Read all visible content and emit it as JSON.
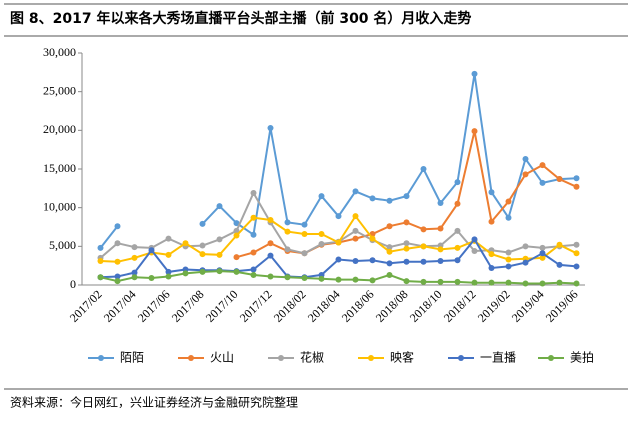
{
  "chart_data": {
    "type": "line",
    "title": "图 8、2017 年以来各大秀场直播平台头部主播（前 300 名）月收入走势",
    "source": "资料来源：今日网红，兴业证券经济与金融研究院整理",
    "categories": [
      "2017/02",
      null,
      "2017/04",
      null,
      "2017/06",
      null,
      "2017/08",
      null,
      "2017/10",
      null,
      "2017/12",
      null,
      "2018/02",
      null,
      "2018/04",
      null,
      "2018/06",
      null,
      "2018/08",
      null,
      "2018/10",
      null,
      "2018/12",
      null,
      "2019/02",
      null,
      "2019/04",
      null,
      "2019/06"
    ],
    "ylim": [
      0,
      30000
    ],
    "yticks": [
      0,
      {
        "value": 5000,
        "label": "5,000"
      },
      {
        "value": 10000,
        "label": "10,000"
      },
      {
        "value": 15000,
        "label": "15,000"
      },
      {
        "value": 20000,
        "label": "20,000"
      },
      {
        "value": 25000,
        "label": "25,000"
      },
      {
        "value": 30000,
        "label": "30,000"
      }
    ],
    "grid": false,
    "legend": "bottom",
    "series": [
      {
        "name": "陌陌",
        "color": "#5b9bd5",
        "values": [
          4800,
          7600,
          null,
          null,
          null,
          null,
          7900,
          10200,
          8000,
          6500,
          20300,
          8100,
          7800,
          11500,
          8900,
          12100,
          11200,
          10900,
          11500,
          15000,
          10600,
          13300,
          27300,
          12000,
          8700,
          16300,
          13200,
          13700,
          13800
        ]
      },
      {
        "name": "火山",
        "color": "#ed7d31",
        "values": [
          null,
          null,
          null,
          null,
          null,
          null,
          null,
          null,
          3600,
          4200,
          5400,
          4400,
          4100,
          5200,
          5500,
          6000,
          6600,
          7600,
          8100,
          7200,
          7300,
          10500,
          19900,
          8200,
          10800,
          14300,
          15500,
          13700,
          12700
        ]
      },
      {
        "name": "花椒",
        "color": "#a5a5a5",
        "values": [
          3500,
          5400,
          4900,
          4800,
          6000,
          5000,
          5100,
          5900,
          7000,
          11900,
          8100,
          4600,
          4100,
          5300,
          5600,
          7000,
          5800,
          4900,
          5400,
          5000,
          5100,
          7000,
          4400,
          4500,
          4200,
          5000,
          4800,
          5000,
          5200
        ]
      },
      {
        "name": "映客",
        "color": "#ffc000",
        "values": [
          3100,
          3000,
          3500,
          4200,
          3900,
          5400,
          4000,
          3900,
          6400,
          8700,
          8400,
          6900,
          6600,
          6600,
          5500,
          8900,
          6000,
          4300,
          4700,
          5000,
          4600,
          4800,
          5700,
          4000,
          3300,
          3400,
          3500,
          5200,
          4100
        ]
      },
      {
        "name": "一直播",
        "color": "#4472c4",
        "values": [
          1000,
          1100,
          1600,
          4500,
          1700,
          2000,
          1900,
          1900,
          1800,
          2000,
          3800,
          1100,
          1000,
          1300,
          3300,
          3100,
          3200,
          2800,
          3000,
          3000,
          3100,
          3200,
          5900,
          2200,
          2400,
          2900,
          4100,
          2600,
          2400
        ]
      },
      {
        "name": "美拍",
        "color": "#70ad47",
        "values": [
          1000,
          500,
          1000,
          900,
          1100,
          1500,
          1700,
          1800,
          1700,
          1300,
          1100,
          1000,
          900,
          800,
          700,
          700,
          600,
          1300,
          500,
          400,
          400,
          400,
          300,
          300,
          300,
          200,
          200,
          300,
          200
        ]
      }
    ]
  }
}
